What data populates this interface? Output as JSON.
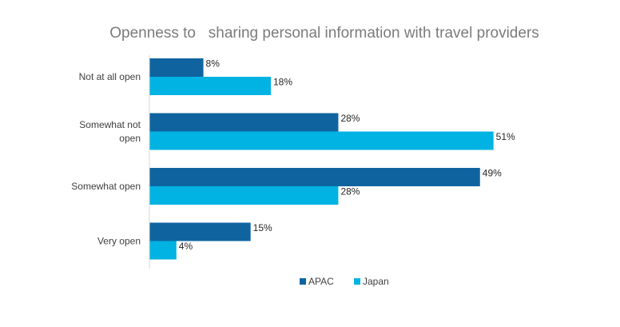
{
  "chart_data": {
    "type": "bar",
    "orientation": "horizontal",
    "title": "Openness to   sharing personal information with travel providers",
    "xlabel": "",
    "ylabel": "",
    "xlim": [
      0,
      54
    ],
    "grid": false,
    "legend_position": "bottom",
    "categories": [
      {
        "lines": [
          "Not at all open"
        ]
      },
      {
        "lines": [
          "Somewhat not",
          "open"
        ]
      },
      {
        "lines": [
          "Somewhat open"
        ]
      },
      {
        "lines": [
          "Very open"
        ]
      }
    ],
    "series": [
      {
        "name": "APAC",
        "color": "#0f64a0",
        "values": [
          8,
          28,
          49,
          15
        ],
        "labels": [
          "8%",
          "28%",
          "49%",
          "15%"
        ]
      },
      {
        "name": "Japan",
        "color": "#00b3e3",
        "values": [
          18,
          51,
          28,
          4
        ],
        "labels": [
          "18%",
          "51%",
          "28%",
          "4%"
        ]
      }
    ],
    "colors": {
      "axis": "#d9d9d9"
    }
  }
}
